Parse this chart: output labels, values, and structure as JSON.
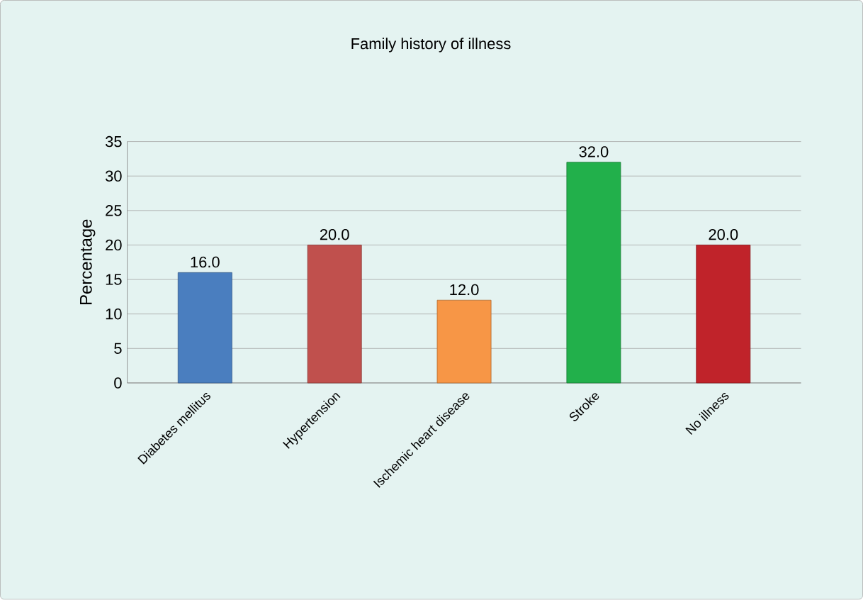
{
  "chart_data": {
    "type": "bar",
    "title": "Family history of illness",
    "ylabel": "Percentage",
    "categories": [
      "Diabetes mellitus",
      "Hypertension",
      "Ischemic heart disease",
      "Stroke",
      "No illness"
    ],
    "values": [
      16.0,
      20.0,
      12.0,
      32.0,
      20.0
    ],
    "colors": [
      "#4a7ebf",
      "#c0504d",
      "#f79646",
      "#22b04b",
      "#c0232a"
    ],
    "value_labels": [
      "16.0",
      "20.0",
      "12.0",
      "32.0",
      "20.0"
    ],
    "ylim": [
      0,
      35
    ],
    "yticks": [
      0,
      5,
      10,
      15,
      20,
      25,
      30,
      35
    ],
    "grid": "y"
  }
}
